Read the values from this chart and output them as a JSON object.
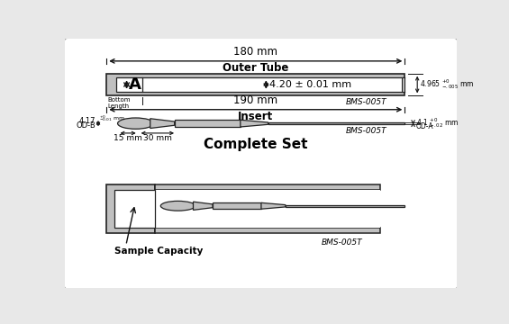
{
  "bg_color": "#e8e8e8",
  "tube_fill": "#c0c0c0",
  "tube_edge": "#222222",
  "lc": "#111111",
  "title_180mm": "180 mm",
  "title_outer": "Outer Tube",
  "title_190mm": "190 mm",
  "title_insert": "Insert",
  "title_complete": "Complete Set",
  "label_A": "A",
  "label_4p20": "4.20 ± 0.01 mm",
  "label_bms005t_1": "BMS-005T",
  "label_bottom": "Bottom\nLength",
  "label_15mm": "15 mm",
  "label_30mm": "30 mm",
  "label_bms005t_2": "BMS-005T",
  "label_sample": "Sample Capacity",
  "label_bms005t_3": "BMS-005T"
}
